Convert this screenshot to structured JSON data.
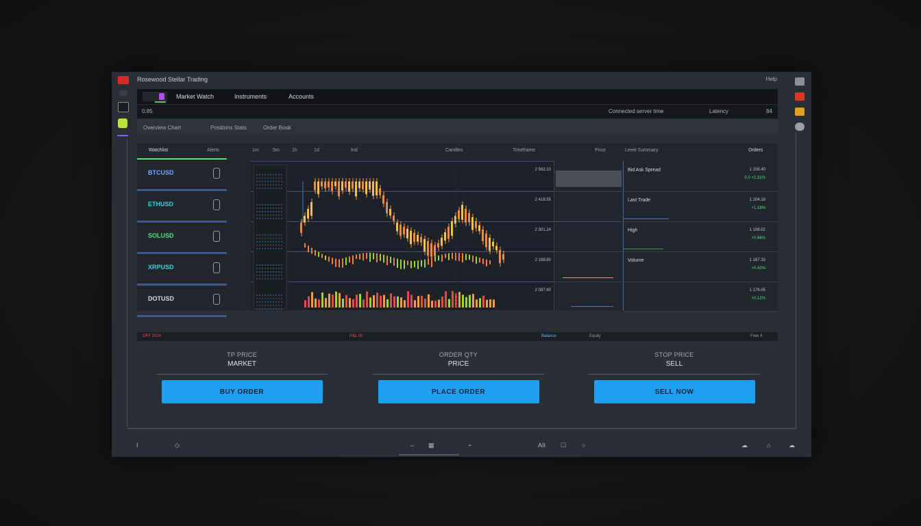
{
  "window": {
    "title": "Rosewood Stellar Trading",
    "control": "Help"
  },
  "topbar": {
    "items": [
      "Market Watch",
      "Instruments",
      "Accounts"
    ]
  },
  "row2": {
    "left": "0.85",
    "right": "Connected server time",
    "right2": "Latency",
    "right3": "84"
  },
  "row3": {
    "tabs": [
      "Overview Chart",
      "Positions Stats",
      "Order Book"
    ]
  },
  "panel": {
    "header_left": "Watchlist",
    "header_left2": "Alerts",
    "header_tools": [
      "1m",
      "5m",
      "1h",
      "1d",
      "Ind"
    ],
    "header_mid": "Candles",
    "header_mid2": "Timeframe",
    "header_mid3": "Price",
    "header_right": "Level Summary",
    "header_right2": "Orders",
    "watchlist": [
      {
        "name": "BTCUSD",
        "color": "#6fa7ff"
      },
      {
        "name": "ETHUSD",
        "color": "#3ad0d8"
      },
      {
        "name": "SOLUSD",
        "color": "#4fe07c"
      },
      {
        "name": "XRPUSD",
        "color": "#3ad0d8"
      },
      {
        "name": "DOTUSD",
        "color": "#d6dae0"
      }
    ],
    "right_rows": [
      {
        "name": "Bid Ask Spread",
        "v1": "1 256.40",
        "v2": "0.0 +2.31%"
      },
      {
        "name": "Last Trade",
        "v1": "1 204.18",
        "v2": "+1.18%"
      },
      {
        "name": "High",
        "v1": "1 198.02",
        "v2": "+0.96%"
      },
      {
        "name": "Volume",
        "v1": "1 187.33",
        "v2": "+0.42%"
      },
      {
        "name": "",
        "v1": "1 176.05",
        "v2": "+0.12%"
      }
    ],
    "chart_labels": [
      "2 562.10",
      "2 418.55",
      "2 301.24",
      "2 198.80",
      "2 087.60"
    ]
  },
  "statusbar": {
    "left": "OFF 2024",
    "mid": "P&L 00",
    "right": "Balance",
    "right2": "Equity",
    "right3": "Free 4"
  },
  "orders": [
    {
      "label": "TP PRICE",
      "value": "MARKET",
      "button": "BUY ORDER"
    },
    {
      "label": "ORDER QTY",
      "value": "PRICE",
      "button": "PLACE ORDER"
    },
    {
      "label": "STOP PRICE",
      "value": "SELL",
      "button": "SELL NOW"
    }
  ],
  "bottom": {
    "left": "I",
    "zoom": "AII",
    "icons": [
      "lock-icon",
      "grid-icon",
      "pulse-icon",
      "list-icon",
      "chat-icon",
      "cloud-icon"
    ]
  }
}
